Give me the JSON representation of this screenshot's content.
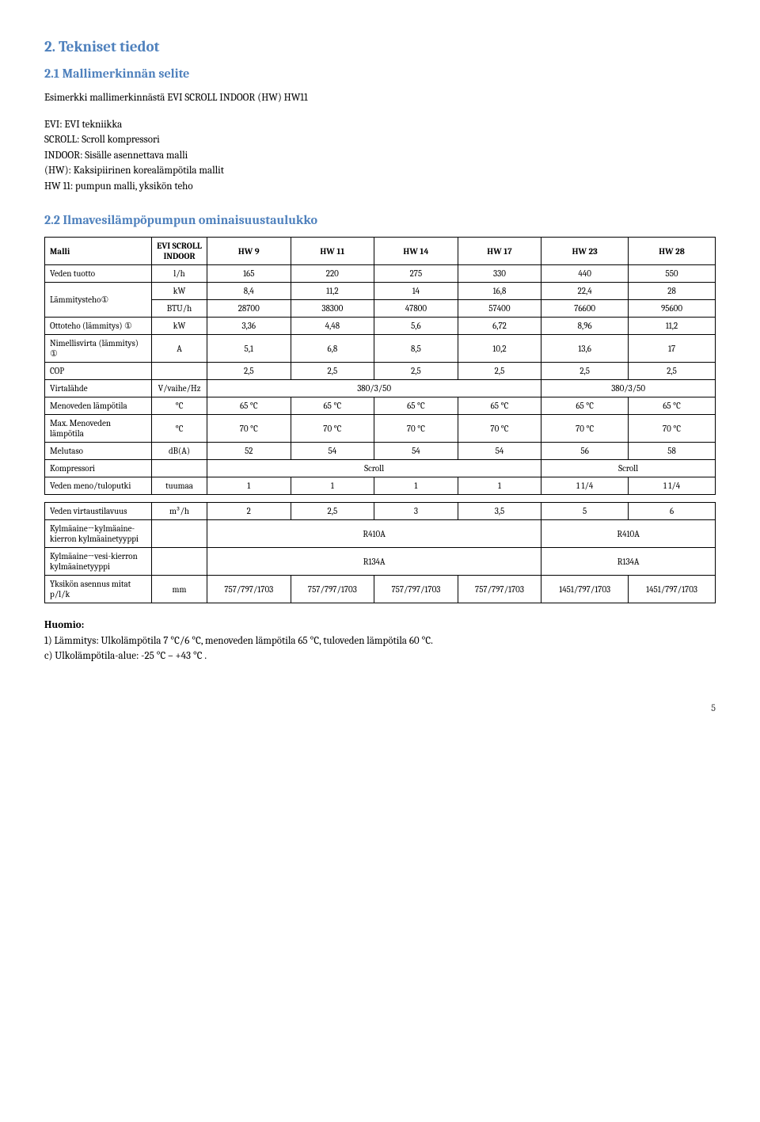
{
  "headings": {
    "h2": "2. Tekniset tiedot",
    "h3_1": "2.1 Mallimerkinnän selite",
    "h3_2": "2.2 Ilmavesilämpöpumpun ominaisuustaulukko"
  },
  "intro": {
    "example": "Esimerkki mallimerkinnästä EVI SCROLL INDOOR (HW) HW11",
    "lines": [
      "EVI: EVI tekniikka",
      "SCROLL: Scroll kompressori",
      "INDOOR: Sisälle asennettava malli",
      "(HW): Kaksipiirinen korealämpötila mallit",
      "HW 11: pumpun malli, yksikön teho"
    ]
  },
  "table": {
    "header": [
      "Malli",
      "EVI SCROLL INDOOR",
      "HW 9",
      "HW 11",
      "HW 14",
      "HW 17",
      "HW 23",
      "HW 28"
    ],
    "rows": [
      {
        "label": "Veden tuotto",
        "unit": "l/h",
        "vals": [
          "165",
          "220",
          "275",
          "330",
          "440",
          "550"
        ]
      },
      {
        "label": "Lämmitysteho①",
        "rowspan": 2,
        "unit": "kW",
        "vals": [
          "8,4",
          "11,2",
          "14",
          "16,8",
          "22,4",
          "28"
        ]
      },
      {
        "unit": "BTU/h",
        "vals": [
          "28700",
          "38300",
          "47800",
          "57400",
          "76600",
          "95600"
        ]
      },
      {
        "label": "Ottoteho (lämmitys) ①",
        "unit": "kW",
        "vals": [
          "3,36",
          "4,48",
          "5,6",
          "6,72",
          "8,96",
          "11,2"
        ]
      },
      {
        "label": "Nimellisvirta (lämmitys) ①",
        "unit": "A",
        "vals": [
          "5,1",
          "6,8",
          "8,5",
          "10,2",
          "13,6",
          "17"
        ]
      },
      {
        "label": "COP",
        "unit": "",
        "vals": [
          "2,5",
          "2,5",
          "2,5",
          "2,5",
          "2,5",
          "2,5"
        ]
      },
      {
        "label": "Virtalähde",
        "unit": "V/vaihe/Hz",
        "spans": [
          {
            "colspan": 4,
            "text": "380/3/50"
          },
          {
            "colspan": 2,
            "text": "380/3/50"
          }
        ]
      },
      {
        "label": "Menoveden lämpötila",
        "unit": "°C",
        "vals": [
          "65 °C",
          "65 °C",
          "65 °C",
          "65 °C",
          "65 °C",
          "65 °C"
        ]
      },
      {
        "label": "Max. Menoveden lämpötila",
        "unit": "°C",
        "vals": [
          "70 °C",
          "70 °C",
          "70 °C",
          "70 °C",
          "70 °C",
          "70 °C"
        ]
      },
      {
        "label": "Melutaso",
        "unit": "dB(A)",
        "vals": [
          "52",
          "54",
          "54",
          "54",
          "56",
          "58"
        ]
      },
      {
        "label": "Kompressori",
        "unit": "",
        "spans": [
          {
            "colspan": 4,
            "text": "Scroll"
          },
          {
            "colspan": 2,
            "text": "Scroll"
          }
        ]
      },
      {
        "label": "Veden meno/tuloputki",
        "unit": "tuumaa",
        "vals": [
          "1",
          "1",
          "1",
          "1",
          "1 1/4",
          "1 1/4"
        ],
        "gapAfter": true
      },
      {
        "label": "Veden virtaustilavuus",
        "unit": "m³/h",
        "vals": [
          "2",
          "2,5",
          "3",
          "3,5",
          "5",
          "6"
        ]
      },
      {
        "label": "Kylmäaine→kylmäaine-kierron kylmäainetyyppi",
        "unit": "",
        "spans": [
          {
            "colspan": 4,
            "text": "R410A"
          },
          {
            "colspan": 2,
            "text": "R410A"
          }
        ]
      },
      {
        "label": "Kylmäaine→vesi-kierron kylmäainetyyppi",
        "unit": "",
        "spans": [
          {
            "colspan": 4,
            "text": "R134A"
          },
          {
            "colspan": 2,
            "text": "R134A"
          }
        ]
      },
      {
        "label": "Yksikön asennus mitat p/l/k",
        "unit": "mm",
        "vals": [
          "757/797/1703",
          "757/797/1703",
          "757/797/1703",
          "757/797/1703",
          "1451/797/1703",
          "1451/797/1703"
        ]
      }
    ]
  },
  "note": {
    "title": "Huomio:",
    "line1": "1) Lämmitys: Ulkolämpötila 7 °C/6 °C, menoveden lämpötila 65 °C, tuloveden lämpötila 60 °C.",
    "line2": "c) Ulkolämpötila-alue: -25 °C – +43 °C ."
  },
  "pageNumber": "5"
}
